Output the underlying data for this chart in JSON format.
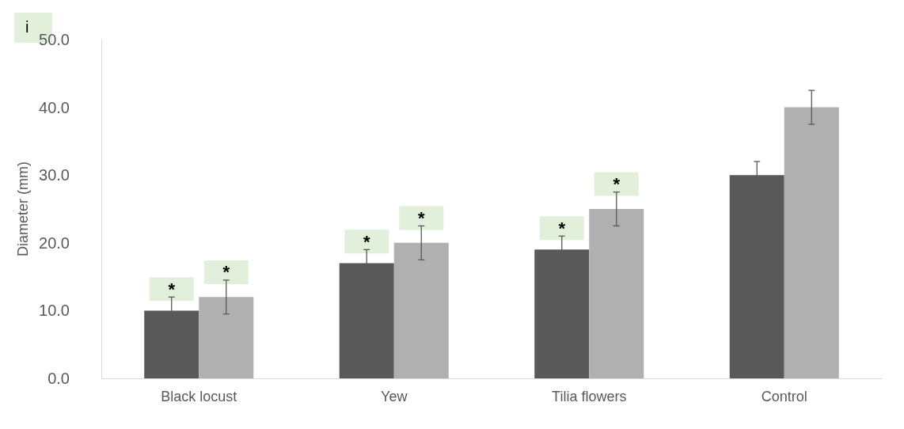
{
  "chart_data": {
    "type": "bar",
    "ylabel": "Diameter (mm)",
    "categories": [
      "Black locust",
      "Yew",
      "Tilia flowers",
      "Control"
    ],
    "series": [
      {
        "color": "#595959",
        "values": [
          10,
          17,
          19,
          30
        ],
        "errors": [
          2,
          2,
          2,
          2
        ],
        "value_labels": [
          "*",
          "*",
          "*",
          null
        ]
      },
      {
        "color": "#b0b0b0",
        "values": [
          12,
          20,
          25,
          40
        ],
        "errors": [
          2.5,
          2.5,
          2.5,
          2.5
        ],
        "value_labels": [
          "*",
          "*",
          "*",
          null
        ]
      }
    ],
    "ylim": [
      0,
      50
    ],
    "yticks": [
      {
        "value": 0,
        "label": "0.0"
      },
      {
        "value": 10,
        "label": "10.0"
      },
      {
        "value": 20,
        "label": "20.0"
      },
      {
        "value": 30,
        "label": "30.0"
      },
      {
        "value": 40,
        "label": "40.0"
      },
      {
        "value": 50,
        "label": "50.0"
      }
    ],
    "grid": false,
    "annotations": [
      "i"
    ]
  }
}
